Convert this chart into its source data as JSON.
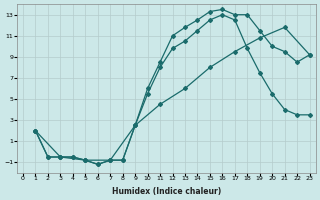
{
  "xlabel": "Humidex (Indice chaleur)",
  "ylabel": "",
  "bg_color": "#cce8e8",
  "grid_color": "#b5cccc",
  "line_color": "#1a6b6b",
  "xlim": [
    -0.5,
    23.5
  ],
  "ylim": [
    -2,
    14
  ],
  "xticks": [
    0,
    1,
    2,
    3,
    4,
    5,
    6,
    7,
    8,
    9,
    10,
    11,
    12,
    13,
    14,
    15,
    16,
    17,
    18,
    19,
    20,
    21,
    22,
    23
  ],
  "yticks": [
    -1,
    1,
    3,
    5,
    7,
    9,
    11,
    13
  ],
  "line1_x": [
    1,
    2,
    3,
    4,
    5,
    6,
    7,
    8,
    9,
    10,
    11,
    12,
    13,
    14,
    15,
    16,
    17,
    18,
    19,
    20,
    21,
    22,
    23
  ],
  "line1_y": [
    2.0,
    -0.5,
    -0.5,
    -0.5,
    -0.8,
    -1.2,
    -0.8,
    -0.8,
    2.5,
    6.0,
    8.5,
    11.0,
    11.8,
    12.5,
    13.3,
    13.5,
    13.0,
    13.0,
    11.5,
    10.0,
    9.5,
    8.5,
    9.2
  ],
  "line2_x": [
    1,
    2,
    3,
    4,
    5,
    6,
    7,
    8,
    9,
    10,
    11,
    12,
    13,
    14,
    15,
    16,
    17,
    18,
    19,
    20,
    21,
    22,
    23
  ],
  "line2_y": [
    2.0,
    -0.5,
    -0.5,
    -0.5,
    -0.8,
    -1.2,
    -0.8,
    -0.8,
    2.5,
    5.5,
    8.0,
    9.8,
    10.5,
    11.5,
    12.5,
    13.0,
    12.5,
    9.8,
    7.5,
    5.5,
    4.0,
    3.5,
    3.5
  ],
  "line3_x": [
    1,
    3,
    5,
    7,
    9,
    11,
    13,
    15,
    17,
    19,
    21,
    23
  ],
  "line3_y": [
    2.0,
    -0.5,
    -0.8,
    -0.8,
    2.5,
    4.5,
    6.0,
    8.0,
    9.5,
    10.8,
    11.8,
    9.2
  ]
}
